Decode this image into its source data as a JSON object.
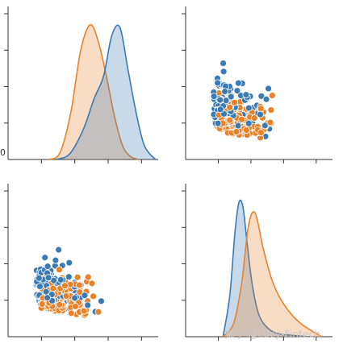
{
  "chart_data": [
    {
      "type": "kde",
      "panel": "top-left",
      "series": [
        {
          "color": "#e8822a",
          "x": [
            0.3,
            0.38,
            0.46,
            0.53,
            0.6,
            0.66,
            0.72,
            0.78,
            0.84,
            0.9,
            0.96
          ],
          "density": [
            0.0,
            0.05,
            0.35,
            0.8,
            1.0,
            0.88,
            0.62,
            0.32,
            0.1,
            0.02,
            0.0
          ]
        },
        {
          "color": "#3a7ab5",
          "x": [
            0.35,
            0.45,
            0.55,
            0.63,
            0.7,
            0.76,
            0.82,
            0.88,
            0.94,
            1.0,
            1.08
          ],
          "density": [
            0.0,
            0.04,
            0.22,
            0.45,
            0.62,
            0.92,
            0.98,
            0.66,
            0.34,
            0.1,
            0.0
          ]
        }
      ]
    },
    {
      "type": "scatter",
      "panel": "top-right",
      "series": [
        {
          "color": "#3a7ab5"
        },
        {
          "color": "#e8822a"
        }
      ]
    },
    {
      "type": "scatter",
      "panel": "bottom-left",
      "series": [
        {
          "color": "#3a7ab5"
        },
        {
          "color": "#e8822a"
        }
      ]
    },
    {
      "type": "kde",
      "panel": "bottom-right",
      "series": [
        {
          "color": "#3a7ab5",
          "x": [
            0.28,
            0.33,
            0.37,
            0.4,
            0.43,
            0.46,
            0.5,
            0.55,
            0.62,
            0.7,
            0.8,
            0.92
          ],
          "density": [
            0.0,
            0.3,
            0.78,
            1.0,
            0.96,
            0.7,
            0.38,
            0.16,
            0.06,
            0.02,
            0.01,
            0.0
          ]
        },
        {
          "color": "#e8822a",
          "x": [
            0.28,
            0.36,
            0.42,
            0.47,
            0.52,
            0.58,
            0.64,
            0.7,
            0.78,
            0.86,
            0.95,
            1.02
          ],
          "density": [
            0.0,
            0.1,
            0.4,
            0.82,
            0.92,
            0.66,
            0.44,
            0.3,
            0.18,
            0.1,
            0.04,
            0.0
          ]
        }
      ]
    }
  ],
  "tick_label_partial": "0",
  "watermark": "知乎 @Lucy-Fintech",
  "colors": {
    "blue": "#3a7ab5",
    "orange": "#e8822a",
    "blue_fill": "rgba(58,122,181,0.28)",
    "orange_fill": "rgba(232,130,42,0.28)"
  }
}
